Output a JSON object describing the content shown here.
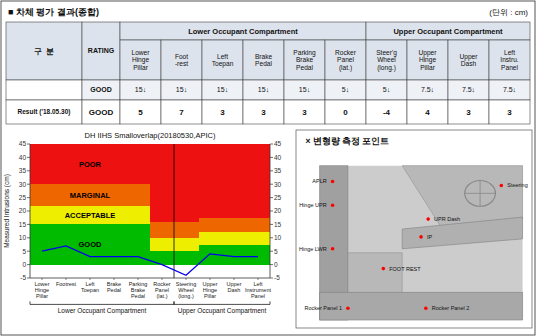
{
  "chart_data": [
    {
      "type": "table",
      "title": "■ 차체 평가 결과(종합)",
      "subtitle": "(단위 : cm)",
      "header": [
        "구  분",
        "RATING"
      ],
      "column_groups": [
        {
          "text": "Lower Occupant Compartment",
          "span": [
            0,
            5
          ]
        },
        {
          "text": "Upper Occupant Compartment",
          "span": [
            6,
            9
          ]
        }
      ],
      "columns": [
        "Lower\nHinge\nPillar",
        "Foot\n-rest",
        "Left\nToepan",
        "Brake\nPedal",
        "Parking\nBrake\nPedal",
        "Rocker\nPanel\n(lat.)",
        "Steer'g\nWheel\n(long.)",
        "Upper\nHinge\nPillar",
        "Upper\nDash",
        "Left\nInstru.\nPanel"
      ],
      "rows": [
        {
          "label": "GOOD",
          "values": [
            "15↓",
            "15↓",
            "15↓",
            "15↓",
            "15↓",
            "5↓",
            "5↓",
            "7.5↓",
            "7.5↓",
            "7.5↓"
          ]
        },
        {
          "header": "Result ('18.05.30)",
          "label": "GOOD",
          "values": [
            5,
            7,
            3,
            3,
            3,
            0,
            -4,
            4,
            3,
            3
          ]
        }
      ]
    },
    {
      "type": "line",
      "title": "DH IIHS Smalloverlap(20180530,APIC)",
      "ylabel": "Measured Intrusions (cm)",
      "categories": [
        "Lower\nHinge\nPillar",
        "Footrest",
        "Left\nToepan",
        "Brake\nPedal",
        "Parking\nBrake\nPedal",
        "Rocker\nPanel\n(lat.)",
        "Steering\nWheel\n(long.)",
        "Upper\nHinge\nPillar",
        "Upper\nDash",
        "Left\nInstrument\nPanel"
      ],
      "series": [
        {
          "name": "GOOD",
          "type": "area",
          "color": "#00BB00",
          "values": [
            15,
            15,
            15,
            15,
            15,
            5,
            5,
            7.5,
            7.5,
            7.5
          ]
        },
        {
          "name": "ACCEPTABLE",
          "type": "area",
          "color": "#EEEE00",
          "values": [
            22,
            22,
            22,
            22,
            22,
            10,
            10,
            12,
            12,
            12
          ]
        },
        {
          "name": "MARGINAL",
          "type": "area",
          "color": "#EE6600",
          "values": [
            30,
            30,
            30,
            30,
            30,
            16,
            16,
            17.5,
            17.5,
            17.5
          ]
        },
        {
          "name": "POOR",
          "type": "area",
          "color": "#EE1111",
          "values": [
            45,
            45,
            45,
            45,
            45,
            45,
            45,
            45,
            45,
            45
          ]
        },
        {
          "type": "line",
          "color": "#0000EE",
          "values": [
            5,
            7,
            3,
            3,
            3,
            0,
            -4,
            4,
            3,
            3
          ]
        }
      ],
      "ylim": [
        -5,
        45
      ],
      "yticks": [
        -5,
        0,
        5,
        10,
        15,
        20,
        25,
        30,
        35,
        40,
        45
      ],
      "y2lim": [
        -5,
        45
      ],
      "y2ticks": [
        -5,
        0,
        5,
        10,
        15,
        20,
        25,
        30,
        35,
        40,
        45
      ],
      "grid": false,
      "annotations": [
        {
          "text": "Lower Occupant Compartment",
          "span": [
            0,
            5
          ]
        },
        {
          "text": "Upper Occupant Compartment",
          "span": [
            6,
            9
          ]
        }
      ]
    },
    {
      "type": "diagram",
      "title": "× 변형량 측정 포인트",
      "labels": [
        "APLR",
        "Hinge UPR",
        "Steering",
        "UPR Dash",
        "IP",
        "Hinge LWR",
        "FOOT REST",
        "Rocker Panel 1",
        "Rocker Panel 2"
      ]
    }
  ]
}
